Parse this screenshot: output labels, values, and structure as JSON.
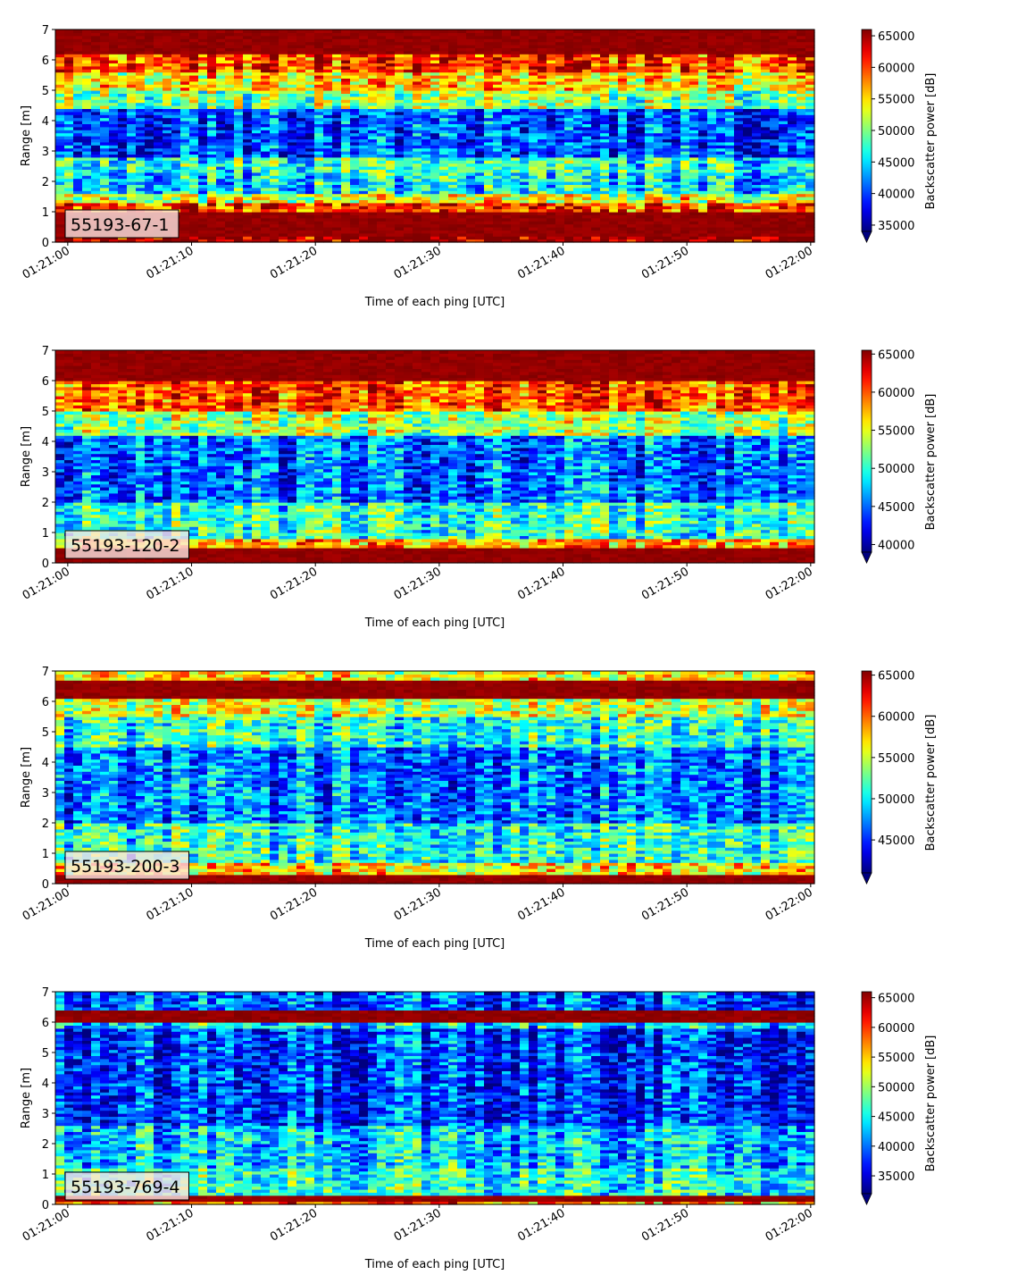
{
  "chart_data": [
    {
      "type": "heatmap",
      "label": "55193-67-1",
      "xlabel": "Time of each ping [UTC]",
      "ylabel": "Range [m]",
      "x_ticks": [
        "01:21:00",
        "01:21:10",
        "01:21:20",
        "01:21:30",
        "01:21:40",
        "01:21:50",
        "01:22:00"
      ],
      "x_range_s": [
        -1,
        60.3
      ],
      "ylim": [
        0,
        7
      ],
      "y_ticks": [
        0,
        1,
        2,
        3,
        4,
        5,
        6,
        7
      ],
      "colorbar_label": "Backscatter power [dB]",
      "clim": [
        34000,
        66000
      ],
      "colorbar_ticks": [
        35000,
        40000,
        45000,
        50000,
        55000,
        60000,
        65000
      ],
      "colormap": "jet",
      "bands": [
        {
          "y": [
            0,
            0.25
          ],
          "v": 65000
        },
        {
          "y": [
            0.25,
            1.05
          ],
          "v": 66000
        },
        {
          "y": [
            1.05,
            1.3
          ],
          "v": 60000
        },
        {
          "y": [
            1.3,
            1.6
          ],
          "v": 53000
        },
        {
          "y": [
            1.6,
            2.3
          ],
          "v": 45000
        },
        {
          "y": [
            2.3,
            2.8
          ],
          "v": 47000
        },
        {
          "y": [
            2.8,
            4.4
          ],
          "v": 40000
        },
        {
          "y": [
            4.4,
            5.0
          ],
          "v": 50000
        },
        {
          "y": [
            5.0,
            5.6
          ],
          "v": 55000
        },
        {
          "y": [
            5.6,
            6.2
          ],
          "v": 60000
        },
        {
          "y": [
            6.2,
            7.0
          ],
          "v": 66000
        }
      ]
    },
    {
      "type": "heatmap",
      "label": "55193-120-2",
      "xlabel": "Time of each ping [UTC]",
      "ylabel": "Range [m]",
      "x_ticks": [
        "01:21:00",
        "01:21:10",
        "01:21:20",
        "01:21:30",
        "01:21:40",
        "01:21:50",
        "01:22:00"
      ],
      "x_range_s": [
        -1,
        60.3
      ],
      "ylim": [
        0,
        7
      ],
      "y_ticks": [
        0,
        1,
        2,
        3,
        4,
        5,
        6,
        7
      ],
      "colorbar_label": "Backscatter power [dB]",
      "clim": [
        39000,
        65500
      ],
      "colorbar_ticks": [
        40000,
        45000,
        50000,
        55000,
        60000,
        65000
      ],
      "colormap": "jet",
      "bands": [
        {
          "y": [
            0,
            0.55
          ],
          "v": 65500
        },
        {
          "y": [
            0.55,
            0.8
          ],
          "v": 58000
        },
        {
          "y": [
            0.8,
            2.0
          ],
          "v": 50000
        },
        {
          "y": [
            2.0,
            4.2
          ],
          "v": 45000
        },
        {
          "y": [
            4.2,
            5.0
          ],
          "v": 53000
        },
        {
          "y": [
            5.0,
            6.0
          ],
          "v": 60000
        },
        {
          "y": [
            6.0,
            7.0
          ],
          "v": 65500
        }
      ]
    },
    {
      "type": "heatmap",
      "label": "55193-200-3",
      "xlabel": "Time of each ping [UTC]",
      "ylabel": "Range [m]",
      "x_ticks": [
        "01:21:00",
        "01:21:10",
        "01:21:20",
        "01:21:30",
        "01:21:40",
        "01:21:50",
        "01:22:00"
      ],
      "x_range_s": [
        -1,
        60.3
      ],
      "ylim": [
        0,
        7
      ],
      "y_ticks": [
        0,
        1,
        2,
        3,
        4,
        5,
        6,
        7
      ],
      "colorbar_label": "Backscatter power [dB]",
      "clim": [
        41000,
        65500
      ],
      "colorbar_ticks": [
        45000,
        50000,
        55000,
        60000,
        65000
      ],
      "colormap": "jet",
      "bands": [
        {
          "y": [
            0,
            0.35
          ],
          "v": 65500
        },
        {
          "y": [
            0.35,
            0.7
          ],
          "v": 57000
        },
        {
          "y": [
            0.7,
            2.0
          ],
          "v": 51000
        },
        {
          "y": [
            2.0,
            4.5
          ],
          "v": 47000
        },
        {
          "y": [
            4.5,
            5.5
          ],
          "v": 51000
        },
        {
          "y": [
            5.5,
            6.1
          ],
          "v": 55000
        },
        {
          "y": [
            6.1,
            6.7
          ],
          "v": 65500
        },
        {
          "y": [
            6.7,
            7.0
          ],
          "v": 56000
        }
      ]
    },
    {
      "type": "heatmap",
      "label": "55193-769-4",
      "xlabel": "Time of each ping [UTC]",
      "ylabel": "Range [m]",
      "x_ticks": [
        "01:21:00",
        "01:21:10",
        "01:21:20",
        "01:21:30",
        "01:21:40",
        "01:21:50",
        "01:22:00"
      ],
      "x_range_s": [
        -1,
        60.3
      ],
      "ylim": [
        0,
        7
      ],
      "y_ticks": [
        0,
        1,
        2,
        3,
        4,
        5,
        6,
        7
      ],
      "colorbar_label": "Backscatter power [dB]",
      "clim": [
        32000,
        66000
      ],
      "colorbar_ticks": [
        35000,
        40000,
        45000,
        50000,
        55000,
        60000,
        65000
      ],
      "colormap": "jet",
      "bands": [
        {
          "y": [
            0,
            0.12
          ],
          "v": 58000
        },
        {
          "y": [
            0.12,
            0.35
          ],
          "v": 66000
        },
        {
          "y": [
            0.35,
            1.2
          ],
          "v": 46000
        },
        {
          "y": [
            1.2,
            2.6
          ],
          "v": 43000
        },
        {
          "y": [
            2.6,
            5.8
          ],
          "v": 38000
        },
        {
          "y": [
            5.8,
            6.0
          ],
          "v": 44000
        },
        {
          "y": [
            6.0,
            6.4
          ],
          "v": 66000
        },
        {
          "y": [
            6.4,
            7.0
          ],
          "v": 39000
        }
      ]
    }
  ]
}
